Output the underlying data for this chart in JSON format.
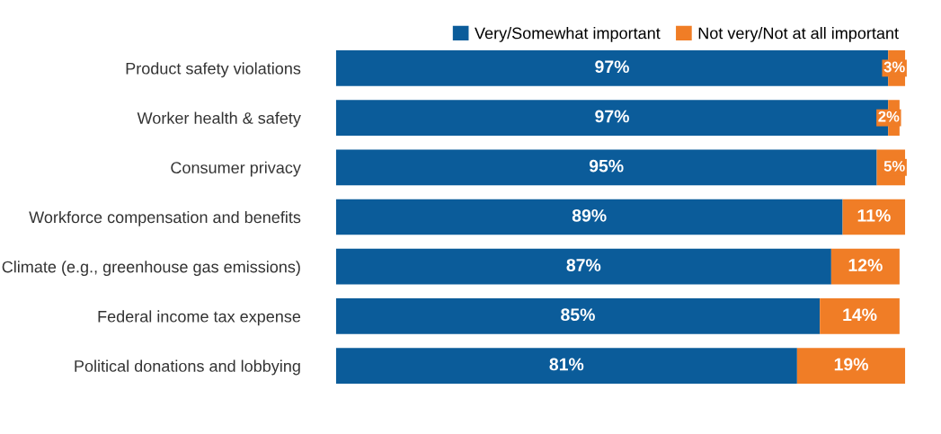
{
  "chart_data": {
    "type": "bar",
    "orientation": "horizontal",
    "stacked": true,
    "legend": "top right",
    "grid": false,
    "categories": [
      "Product safety violations",
      "Worker health & safety",
      "Consumer privacy",
      "Workforce compensation and benefits",
      "Climate (e.g., greenhouse gas emissions)",
      "Federal income tax expense",
      "Political donations and lobbying"
    ],
    "series": [
      {
        "name": "Very/Somewhat important",
        "color": "#0b5c9a",
        "values": [
          97,
          97,
          95,
          89,
          87,
          85,
          81
        ],
        "value_labels": [
          "97%",
          "97%",
          "95%",
          "89%",
          "87%",
          "85%",
          "81%"
        ]
      },
      {
        "name": "Not very/Not at all important",
        "color": "#f07d26",
        "values": [
          3,
          2,
          5,
          11,
          12,
          14,
          19
        ],
        "value_labels": [
          "3%",
          "2%",
          "5%",
          "11%",
          "12%",
          "14%",
          "19%"
        ]
      }
    ]
  }
}
